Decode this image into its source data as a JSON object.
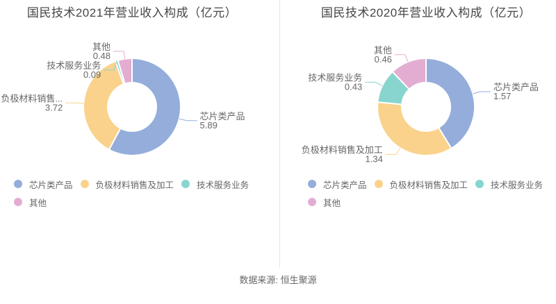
{
  "page": {
    "source_note": "数据来源: 恒生聚源"
  },
  "style": {
    "title_color": "#464646",
    "label_color": "#666666",
    "divider_color": "#e3e3e3",
    "background": "#ffffff"
  },
  "chart_data": [
    {
      "type": "pie",
      "donut": true,
      "title": "国民技术2021年营业收入构成（亿元）",
      "legend_position": "bottom",
      "slices": [
        {
          "label": "芯片类产品",
          "callout_label": "芯片类产品",
          "value": 5.89,
          "display_value": "5.89",
          "color": "#94ADDB"
        },
        {
          "label": "负极材料销售及加工",
          "callout_label": "负极材料销售...",
          "value": 3.72,
          "display_value": "3.72",
          "color": "#FAD28C"
        },
        {
          "label": "技术服务业务",
          "callout_label": "技术服务业务",
          "value": 0.09,
          "display_value": "0.09",
          "color": "#87D5CE"
        },
        {
          "label": "其他",
          "callout_label": "其他",
          "value": 0.48,
          "display_value": "0.48",
          "color": "#E3ADD2"
        }
      ],
      "legend_rows": [
        [
          "芯片类产品",
          "负极材料销售及加工",
          "技术服务业务"
        ],
        [
          "其他"
        ]
      ]
    },
    {
      "type": "pie",
      "donut": true,
      "title": "国民技术2020年营业收入构成（亿元）",
      "legend_position": "bottom",
      "slices": [
        {
          "label": "芯片类产品",
          "callout_label": "芯片类产品",
          "value": 1.57,
          "display_value": "1.57",
          "color": "#94ADDB"
        },
        {
          "label": "负极材料销售及加工",
          "callout_label": "负极材料销售及加工",
          "value": 1.34,
          "display_value": "1.34",
          "color": "#FAD28C"
        },
        {
          "label": "技术服务业务",
          "callout_label": "技术服务业务",
          "value": 0.43,
          "display_value": "0.43",
          "color": "#87D5CE"
        },
        {
          "label": "其他",
          "callout_label": "其他",
          "value": 0.46,
          "display_value": "0.46",
          "color": "#E3ADD2"
        }
      ],
      "legend_rows": [
        [
          "芯片类产品",
          "负极材料销售及加工",
          "技术服务业务"
        ],
        [
          "其他"
        ]
      ]
    }
  ]
}
